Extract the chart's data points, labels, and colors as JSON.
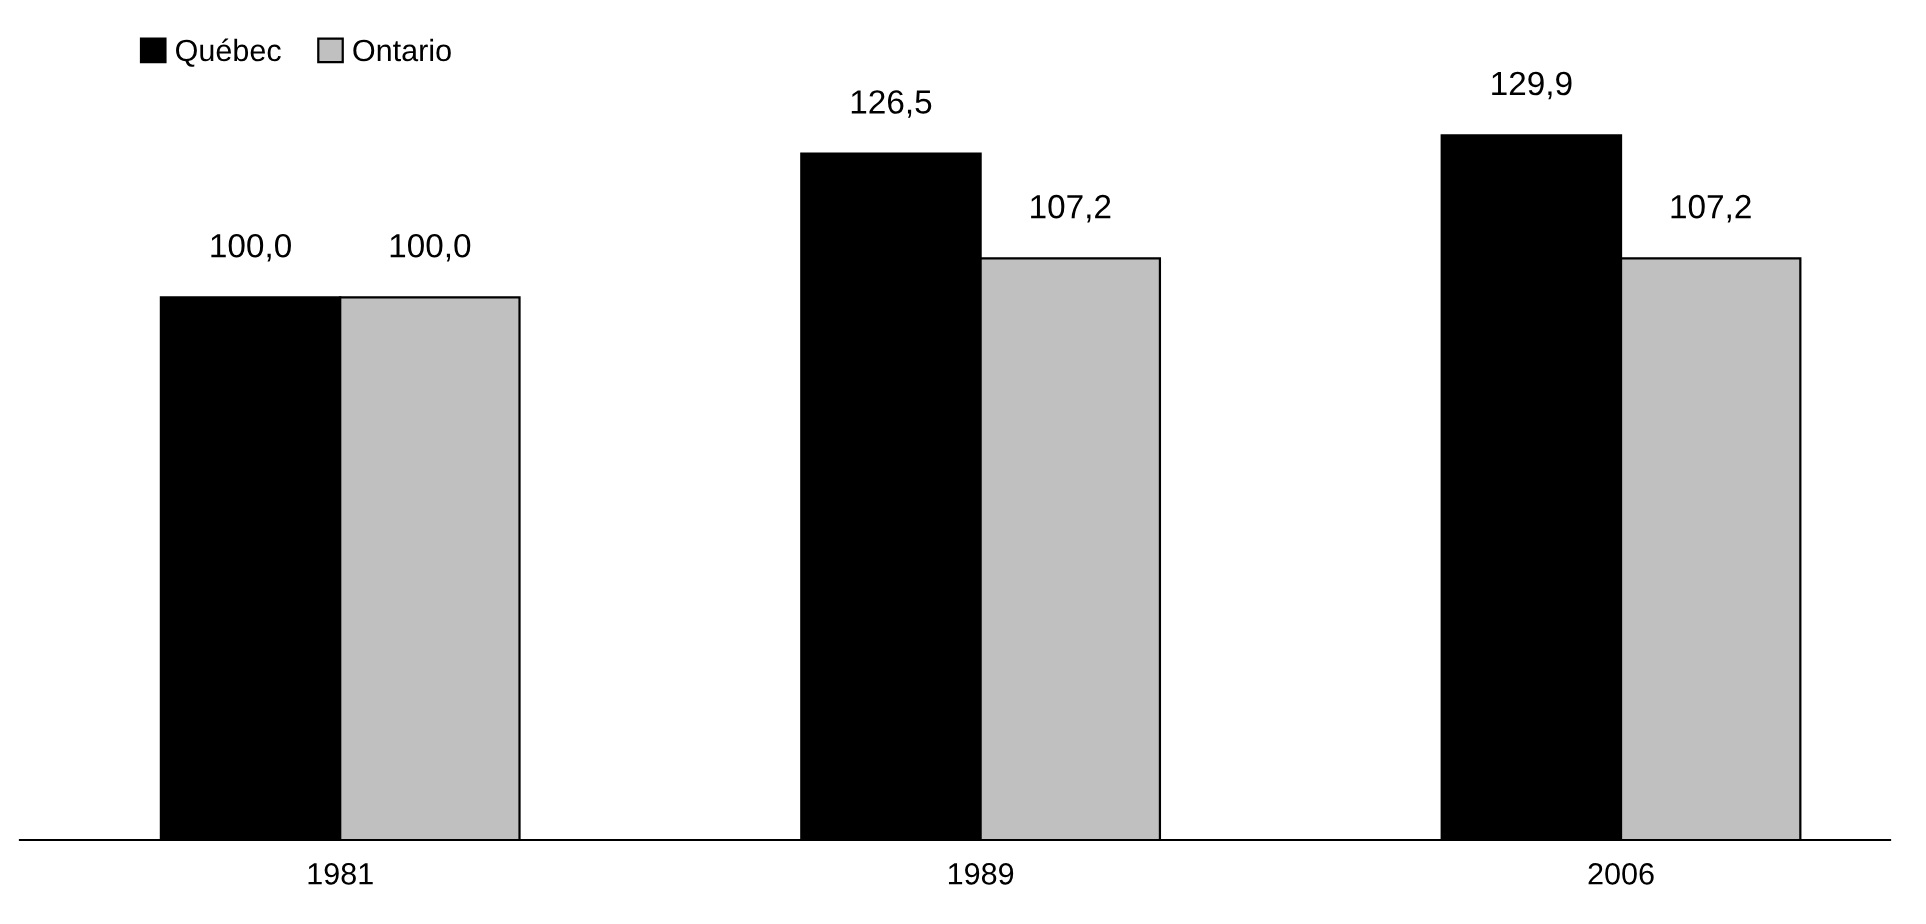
{
  "chart_data": {
    "type": "bar",
    "categories": [
      "1981",
      "1989",
      "2006"
    ],
    "series": [
      {
        "name": "Québec",
        "color": "#000000",
        "values": [
          100.0,
          126.5,
          129.9
        ],
        "value_labels": [
          "100,0",
          "126,5",
          "129,9"
        ]
      },
      {
        "name": "Ontario",
        "color": "#c0c0c0",
        "values": [
          100.0,
          107.2,
          107.2
        ],
        "value_labels": [
          "100,0",
          "107,2",
          "107,2"
        ]
      }
    ],
    "tick_labels": "x",
    "grid": false,
    "legend": "top left"
  }
}
